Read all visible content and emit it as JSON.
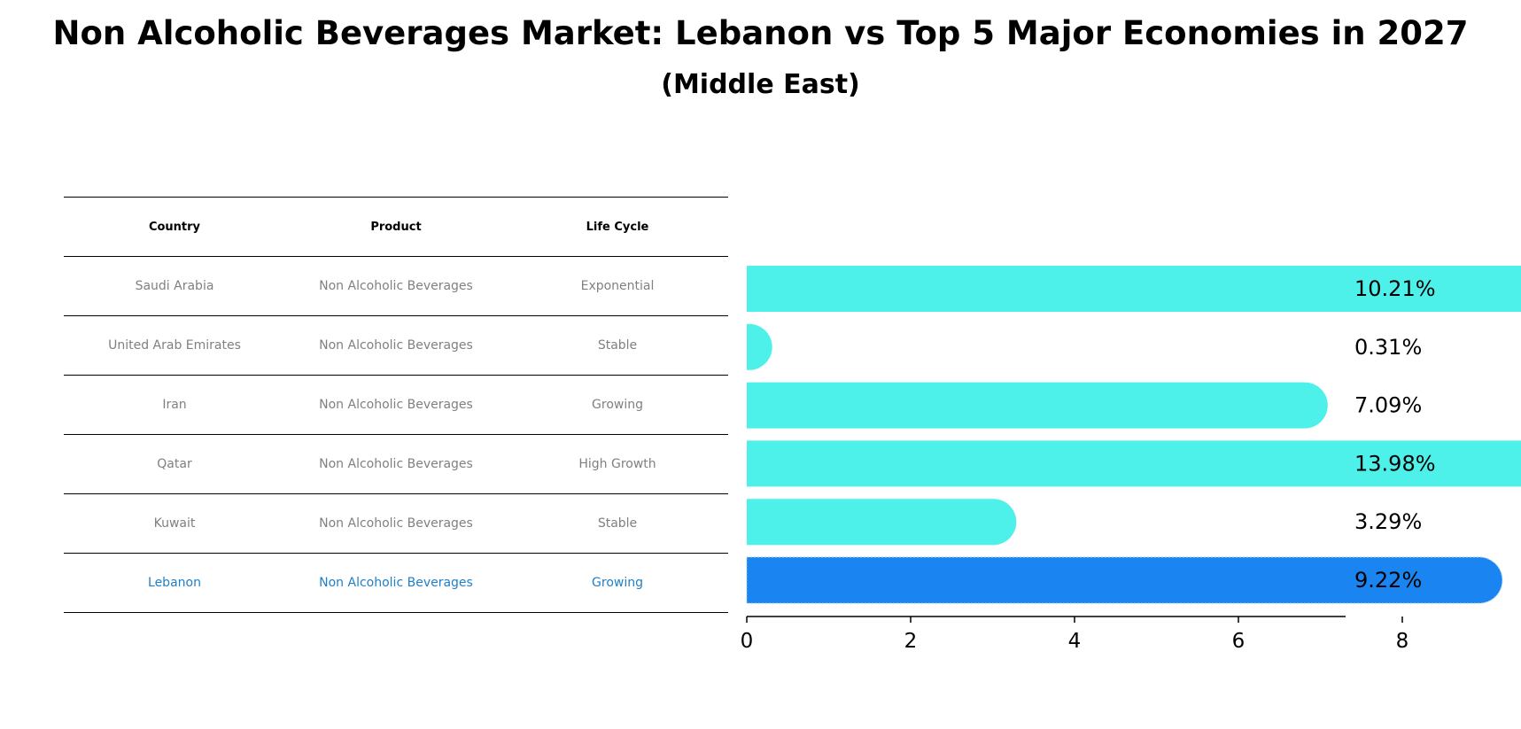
{
  "title": "Non Alcoholic Beverages Market: Lebanon vs Top 5 Major Economies in 2027",
  "subtitle": "(Middle East)",
  "table": {
    "headers": [
      "Country",
      "Product",
      "Life Cycle"
    ],
    "rows": [
      {
        "country": "Saudi Arabia",
        "product": "Non Alcoholic Beverages",
        "life_cycle": "Exponential",
        "highlight": false
      },
      {
        "country": "United Arab Emirates",
        "product": "Non Alcoholic Beverages",
        "life_cycle": "Stable",
        "highlight": false
      },
      {
        "country": "Iran",
        "product": "Non Alcoholic Beverages",
        "life_cycle": "Growing",
        "highlight": false
      },
      {
        "country": "Qatar",
        "product": "Non Alcoholic Beverages",
        "life_cycle": "High Growth",
        "highlight": false
      },
      {
        "country": "Kuwait",
        "product": "Non Alcoholic Beverages",
        "life_cycle": "Stable",
        "highlight": false
      },
      {
        "country": "Lebanon",
        "product": "Non Alcoholic Beverages",
        "life_cycle": "Growing",
        "highlight": true
      }
    ],
    "text_color": "#808080",
    "highlight_text_color": "#1f7fc7"
  },
  "chart_data": {
    "type": "bar",
    "orientation": "horizontal",
    "categories": [
      "Saudi Arabia",
      "United Arab Emirates",
      "Iran",
      "Qatar",
      "Kuwait",
      "Lebanon"
    ],
    "values": [
      10.21,
      0.31,
      7.09,
      13.98,
      3.29,
      9.22
    ],
    "value_labels": [
      "10.21%",
      "0.31%",
      "7.09%",
      "13.98%",
      "3.29%",
      "9.22%"
    ],
    "highlight_index": 5,
    "bar_color": "#4ef0ea",
    "highlight_color": "#1a84f0",
    "xlim": [
      0,
      14.7
    ],
    "xticks": [
      0,
      2,
      4,
      6,
      8,
      10,
      12,
      14
    ],
    "xlabel": "",
    "ylabel": "",
    "grid": false,
    "legend": "none"
  }
}
